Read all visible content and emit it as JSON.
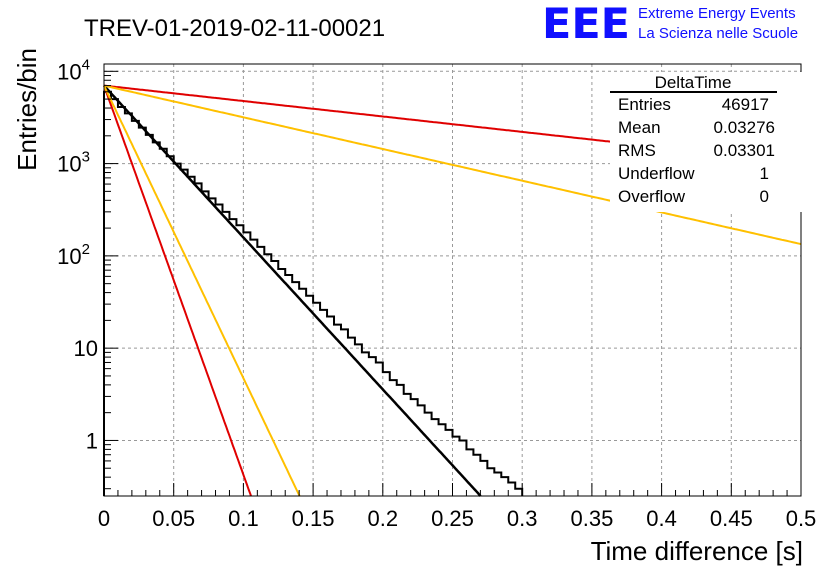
{
  "header": {
    "title": "TREV-01-2019-02-11-00021",
    "logo_letters": "EEE",
    "logo_line1": "Extreme Energy Events",
    "logo_line2": "La Scienza nelle Scuole"
  },
  "stats_box": {
    "name": "DeltaTime",
    "rows": [
      {
        "label": "Entries",
        "value": "46917"
      },
      {
        "label": "Mean",
        "value": "0.03276"
      },
      {
        "label": "RMS",
        "value": "0.03301"
      },
      {
        "label": "Underflow",
        "value": "1"
      },
      {
        "label": "Overflow",
        "value": "0"
      }
    ]
  },
  "colors": {
    "histogram": "#000000",
    "fit": "#000000",
    "red_curve": "#e00000",
    "orange_curve": "#ffc000",
    "logo_blue": "#1010ff",
    "grid": "#999999"
  },
  "chart_data": {
    "type": "line",
    "title": "TREV-01-2019-02-11-00021",
    "xlabel": "Time difference [s]",
    "ylabel": "Entries/bin",
    "xlim": [
      0,
      0.5
    ],
    "ylim": [
      0.25,
      12000
    ],
    "yscale": "log",
    "grid": true,
    "legend": "top-right",
    "x_ticks": [
      "0",
      "0.05",
      "0.1",
      "0.15",
      "0.2",
      "0.25",
      "0.3",
      "0.35",
      "0.4",
      "0.45",
      "0.5"
    ],
    "y_ticks": [
      {
        "value": 1,
        "mantissa": "1",
        "exp": ""
      },
      {
        "value": 10,
        "mantissa": "10",
        "exp": ""
      },
      {
        "value": 100,
        "mantissa": "10",
        "exp": "2"
      },
      {
        "value": 1000,
        "mantissa": "10",
        "exp": "3"
      },
      {
        "value": 10000,
        "mantissa": "10",
        "exp": "4"
      }
    ],
    "histogram": {
      "bin_width": 0.005,
      "x_start": 0.0,
      "counts": [
        6000,
        5000,
        4100,
        3500,
        2900,
        2450,
        2050,
        1700,
        1450,
        1200,
        1000,
        860,
        720,
        610,
        500,
        420,
        360,
        300,
        250,
        215,
        180,
        150,
        125,
        104,
        88,
        72,
        62,
        52,
        44,
        37,
        31,
        26,
        22,
        18,
        16,
        13,
        11,
        9,
        8,
        7,
        5.5,
        4.5,
        4,
        3.2,
        2.8,
        2.4,
        2,
        1.7,
        1.5,
        1.3,
        1.1,
        1,
        0.8,
        0.7,
        0.6,
        0.5,
        0.45,
        0.4,
        0.35,
        0.3
      ]
    },
    "series": [
      {
        "type": "exp",
        "a": 7000,
        "b": -37.9,
        "x_max": 0.345
      },
      {
        "type": "exp",
        "a": 7000,
        "b": -97.1
      },
      {
        "type": "exp",
        "a": 7000,
        "b": -73.0
      },
      {
        "type": "exp",
        "a": 7000,
        "b": -3.85
      },
      {
        "type": "exp",
        "a": 7000,
        "b": -7.91
      }
    ]
  }
}
